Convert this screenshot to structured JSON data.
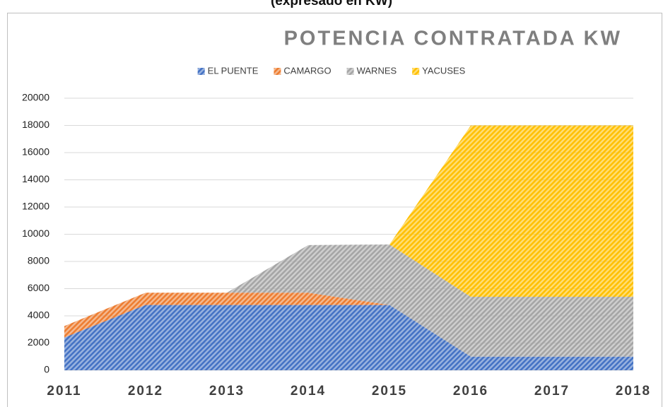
{
  "chart_data": {
    "type": "area",
    "stacked": true,
    "subtitle": "(expresado en KW)",
    "title": "POTENCIA CONTRATADA KW",
    "categories": [
      "2011",
      "2012",
      "2013",
      "2014",
      "2015",
      "2016",
      "2017",
      "2018"
    ],
    "series": [
      {
        "name": "EL PUENTE",
        "color": "#4472c4",
        "values": [
          2400,
          4800,
          4800,
          4800,
          4800,
          1000,
          1000,
          1000
        ]
      },
      {
        "name": "CAMARGO",
        "color": "#ed7d31",
        "values": [
          850,
          900,
          900,
          900,
          0,
          0,
          0,
          0
        ]
      },
      {
        "name": "WARNES",
        "color": "#a5a5a5",
        "values": [
          0,
          0,
          0,
          3500,
          4450,
          4400,
          4400,
          4400
        ]
      },
      {
        "name": "YACUSES",
        "color": "#ffc000",
        "values": [
          0,
          0,
          0,
          0,
          0,
          12600,
          12600,
          12600
        ]
      }
    ],
    "ylim": [
      0,
      20000
    ],
    "yticks": [
      0,
      2000,
      4000,
      6000,
      8000,
      10000,
      12000,
      14000,
      16000,
      18000,
      20000
    ],
    "grid": true,
    "legend": "top"
  }
}
